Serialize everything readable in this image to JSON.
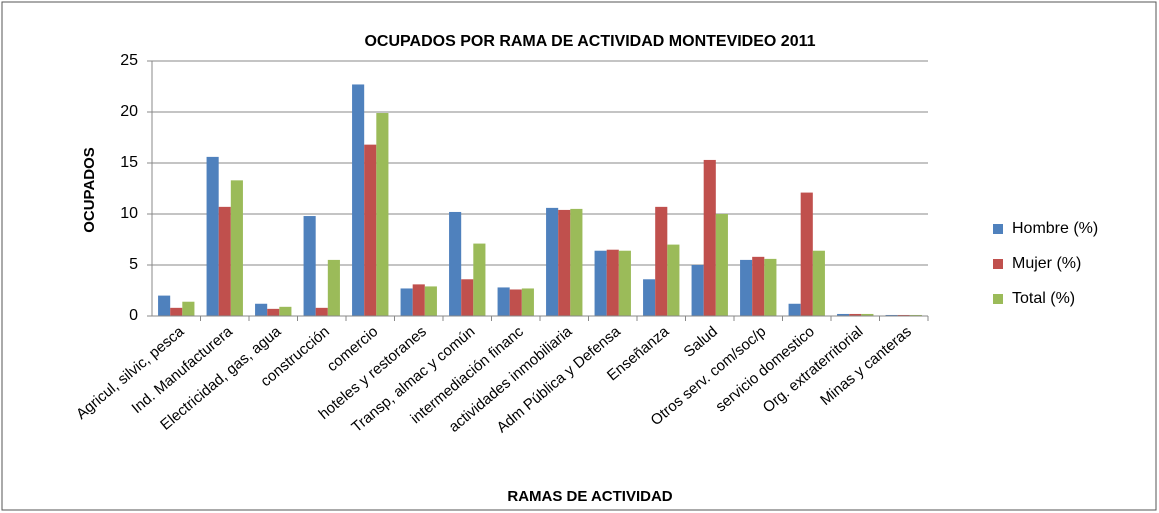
{
  "chart_data": {
    "type": "bar",
    "title": "OCUPADOS POR RAMA DE ACTIVIDAD  MONTEVIDEO 2011",
    "x_label": "RAMAS DE ACTIVIDAD",
    "y_label": "OCUPADOS",
    "categories": [
      "Agricul, silvic, pesca",
      "Ind. Manufacturera",
      "Electricidad, gas, agua",
      "construcción",
      "comercio",
      "hoteles y restoranes",
      "Transp, almac y común",
      "intermediación financ",
      "actividades inmobiliaria",
      "Adm Pública y Defensa",
      "Enseñanza",
      "Salud",
      "Otros serv. com/soc/p",
      "servicio domestico",
      "Org. extraterritorial",
      "Minas y canteras"
    ],
    "series": [
      {
        "name": "Hombre (%)",
        "color": "#4f81bd",
        "values": [
          2.0,
          15.6,
          1.2,
          9.8,
          22.7,
          2.7,
          10.2,
          2.8,
          10.6,
          6.4,
          3.6,
          5.0,
          5.5,
          1.2,
          0.2,
          0.1
        ]
      },
      {
        "name": "Mujer (%)",
        "color": "#c0504d",
        "values": [
          0.8,
          10.7,
          0.7,
          0.8,
          16.8,
          3.1,
          3.6,
          2.6,
          10.4,
          6.5,
          10.7,
          15.3,
          5.8,
          12.1,
          0.2,
          0.1
        ]
      },
      {
        "name": "Total (%)",
        "color": "#9bbb59",
        "values": [
          1.4,
          13.3,
          0.9,
          5.5,
          19.9,
          2.9,
          7.1,
          2.7,
          10.5,
          6.4,
          7.0,
          10.0,
          5.6,
          6.4,
          0.2,
          0.1
        ]
      }
    ],
    "ylim": [
      0,
      25
    ],
    "yticks": [
      0,
      5,
      10,
      15,
      20,
      25
    ],
    "grid": true,
    "legend": "right"
  }
}
